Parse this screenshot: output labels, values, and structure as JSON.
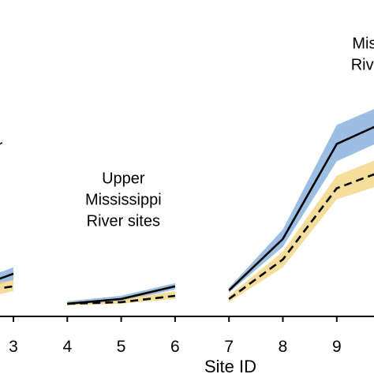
{
  "chart_data": {
    "type": "line",
    "xlabel": "Site ID",
    "ylabel": "",
    "x_ticks": [
      3,
      4,
      5,
      6,
      7,
      8,
      9
    ],
    "xlim": [
      2.6,
      10.1
    ],
    "ylim": [
      0,
      1
    ],
    "grid": false,
    "colors": {
      "solid": "#000000",
      "dashed": "#000000",
      "band_solid": "#7aa8d8",
      "band_dashed": "#f2d27a"
    },
    "annotations": [
      {
        "lines": [
          "r"
        ],
        "x": 2.75,
        "y": 0.54
      },
      {
        "lines": [
          "Upper",
          "Mississippi",
          "River sites"
        ],
        "x": 5.04,
        "y": 0.37
      },
      {
        "lines": [
          "Missou",
          "River si"
        ],
        "x": 9.75,
        "y": 0.83
      }
    ],
    "series": [
      {
        "style": "solid",
        "groups": [
          {
            "x": [
              2.6,
              3
            ],
            "y": [
              0.11,
              0.135
            ],
            "lower": [
              0.095,
              0.115
            ],
            "upper": [
              0.13,
              0.155
            ]
          },
          {
            "x": [
              4,
              5,
              6
            ],
            "y": [
              0.04,
              0.055,
              0.095
            ],
            "lower": [
              0.035,
              0.048,
              0.085
            ],
            "upper": [
              0.048,
              0.065,
              0.105
            ]
          },
          {
            "x": [
              7,
              8,
              9,
              10.1
            ],
            "y": [
              0.082,
              0.245,
              0.545,
              0.63
            ],
            "lower": [
              0.075,
              0.22,
              0.49,
              0.575
            ],
            "upper": [
              0.09,
              0.275,
              0.605,
              0.685
            ]
          }
        ]
      },
      {
        "style": "dashed",
        "groups": [
          {
            "x": [
              2.6,
              3
            ],
            "y": [
              0.085,
              0.095
            ],
            "lower": [
              0.065,
              0.08
            ],
            "upper": [
              0.105,
              0.115
            ]
          },
          {
            "x": [
              4,
              5,
              6
            ],
            "y": [
              0.04,
              0.045,
              0.065
            ],
            "lower": [
              0.035,
              0.04,
              0.055
            ],
            "upper": [
              0.045,
              0.055,
              0.08
            ]
          },
          {
            "x": [
              7,
              8,
              9,
              10.1
            ],
            "y": [
              0.055,
              0.18,
              0.405,
              0.475
            ],
            "lower": [
              0.045,
              0.155,
              0.37,
              0.43
            ],
            "upper": [
              0.065,
              0.205,
              0.445,
              0.52
            ]
          }
        ]
      }
    ]
  }
}
